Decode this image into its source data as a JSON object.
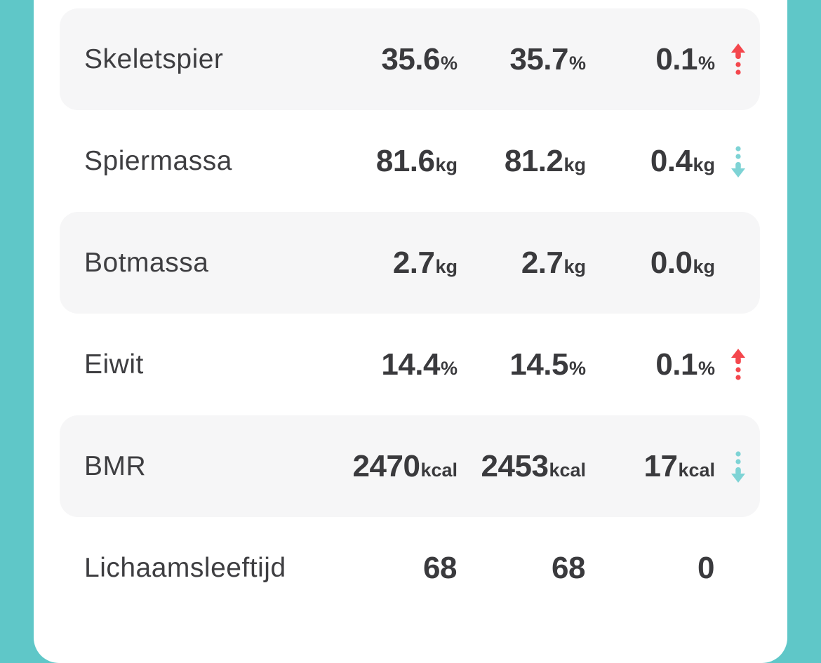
{
  "theme": {
    "background_teal": "#5fc7c8",
    "card_white": "#ffffff",
    "row_shaded_gray": "#f6f6f7",
    "text_dark": "#3a3a3d",
    "arrow_up_red": "#f4474d",
    "arrow_down_teal": "#7ed3d5"
  },
  "table": {
    "rows": [
      {
        "label": "Skeletspier",
        "value1": "35.6",
        "unit1": "%",
        "value2": "35.7",
        "unit2": "%",
        "delta": "0.1",
        "delta_unit": "%",
        "trend": "up",
        "shaded": true
      },
      {
        "label": "Spiermassa",
        "value1": "81.6",
        "unit1": "kg",
        "value2": "81.2",
        "unit2": "kg",
        "delta": "0.4",
        "delta_unit": "kg",
        "trend": "down",
        "shaded": false
      },
      {
        "label": "Botmassa",
        "value1": "2.7",
        "unit1": "kg",
        "value2": "2.7",
        "unit2": "kg",
        "delta": "0.0",
        "delta_unit": "kg",
        "trend": "none",
        "shaded": true
      },
      {
        "label": "Eiwit",
        "value1": "14.4",
        "unit1": "%",
        "value2": "14.5",
        "unit2": "%",
        "delta": "0.1",
        "delta_unit": "%",
        "trend": "up",
        "shaded": false
      },
      {
        "label": "BMR",
        "value1": "2470",
        "unit1": "kcal",
        "value2": "2453",
        "unit2": "kcal",
        "delta": "17",
        "delta_unit": "kcal",
        "trend": "down",
        "shaded": true
      },
      {
        "label": "Lichaamsleeftijd",
        "value1": "68",
        "unit1": "",
        "value2": "68",
        "unit2": "",
        "delta": "0",
        "delta_unit": "",
        "trend": "none",
        "shaded": false
      }
    ]
  }
}
